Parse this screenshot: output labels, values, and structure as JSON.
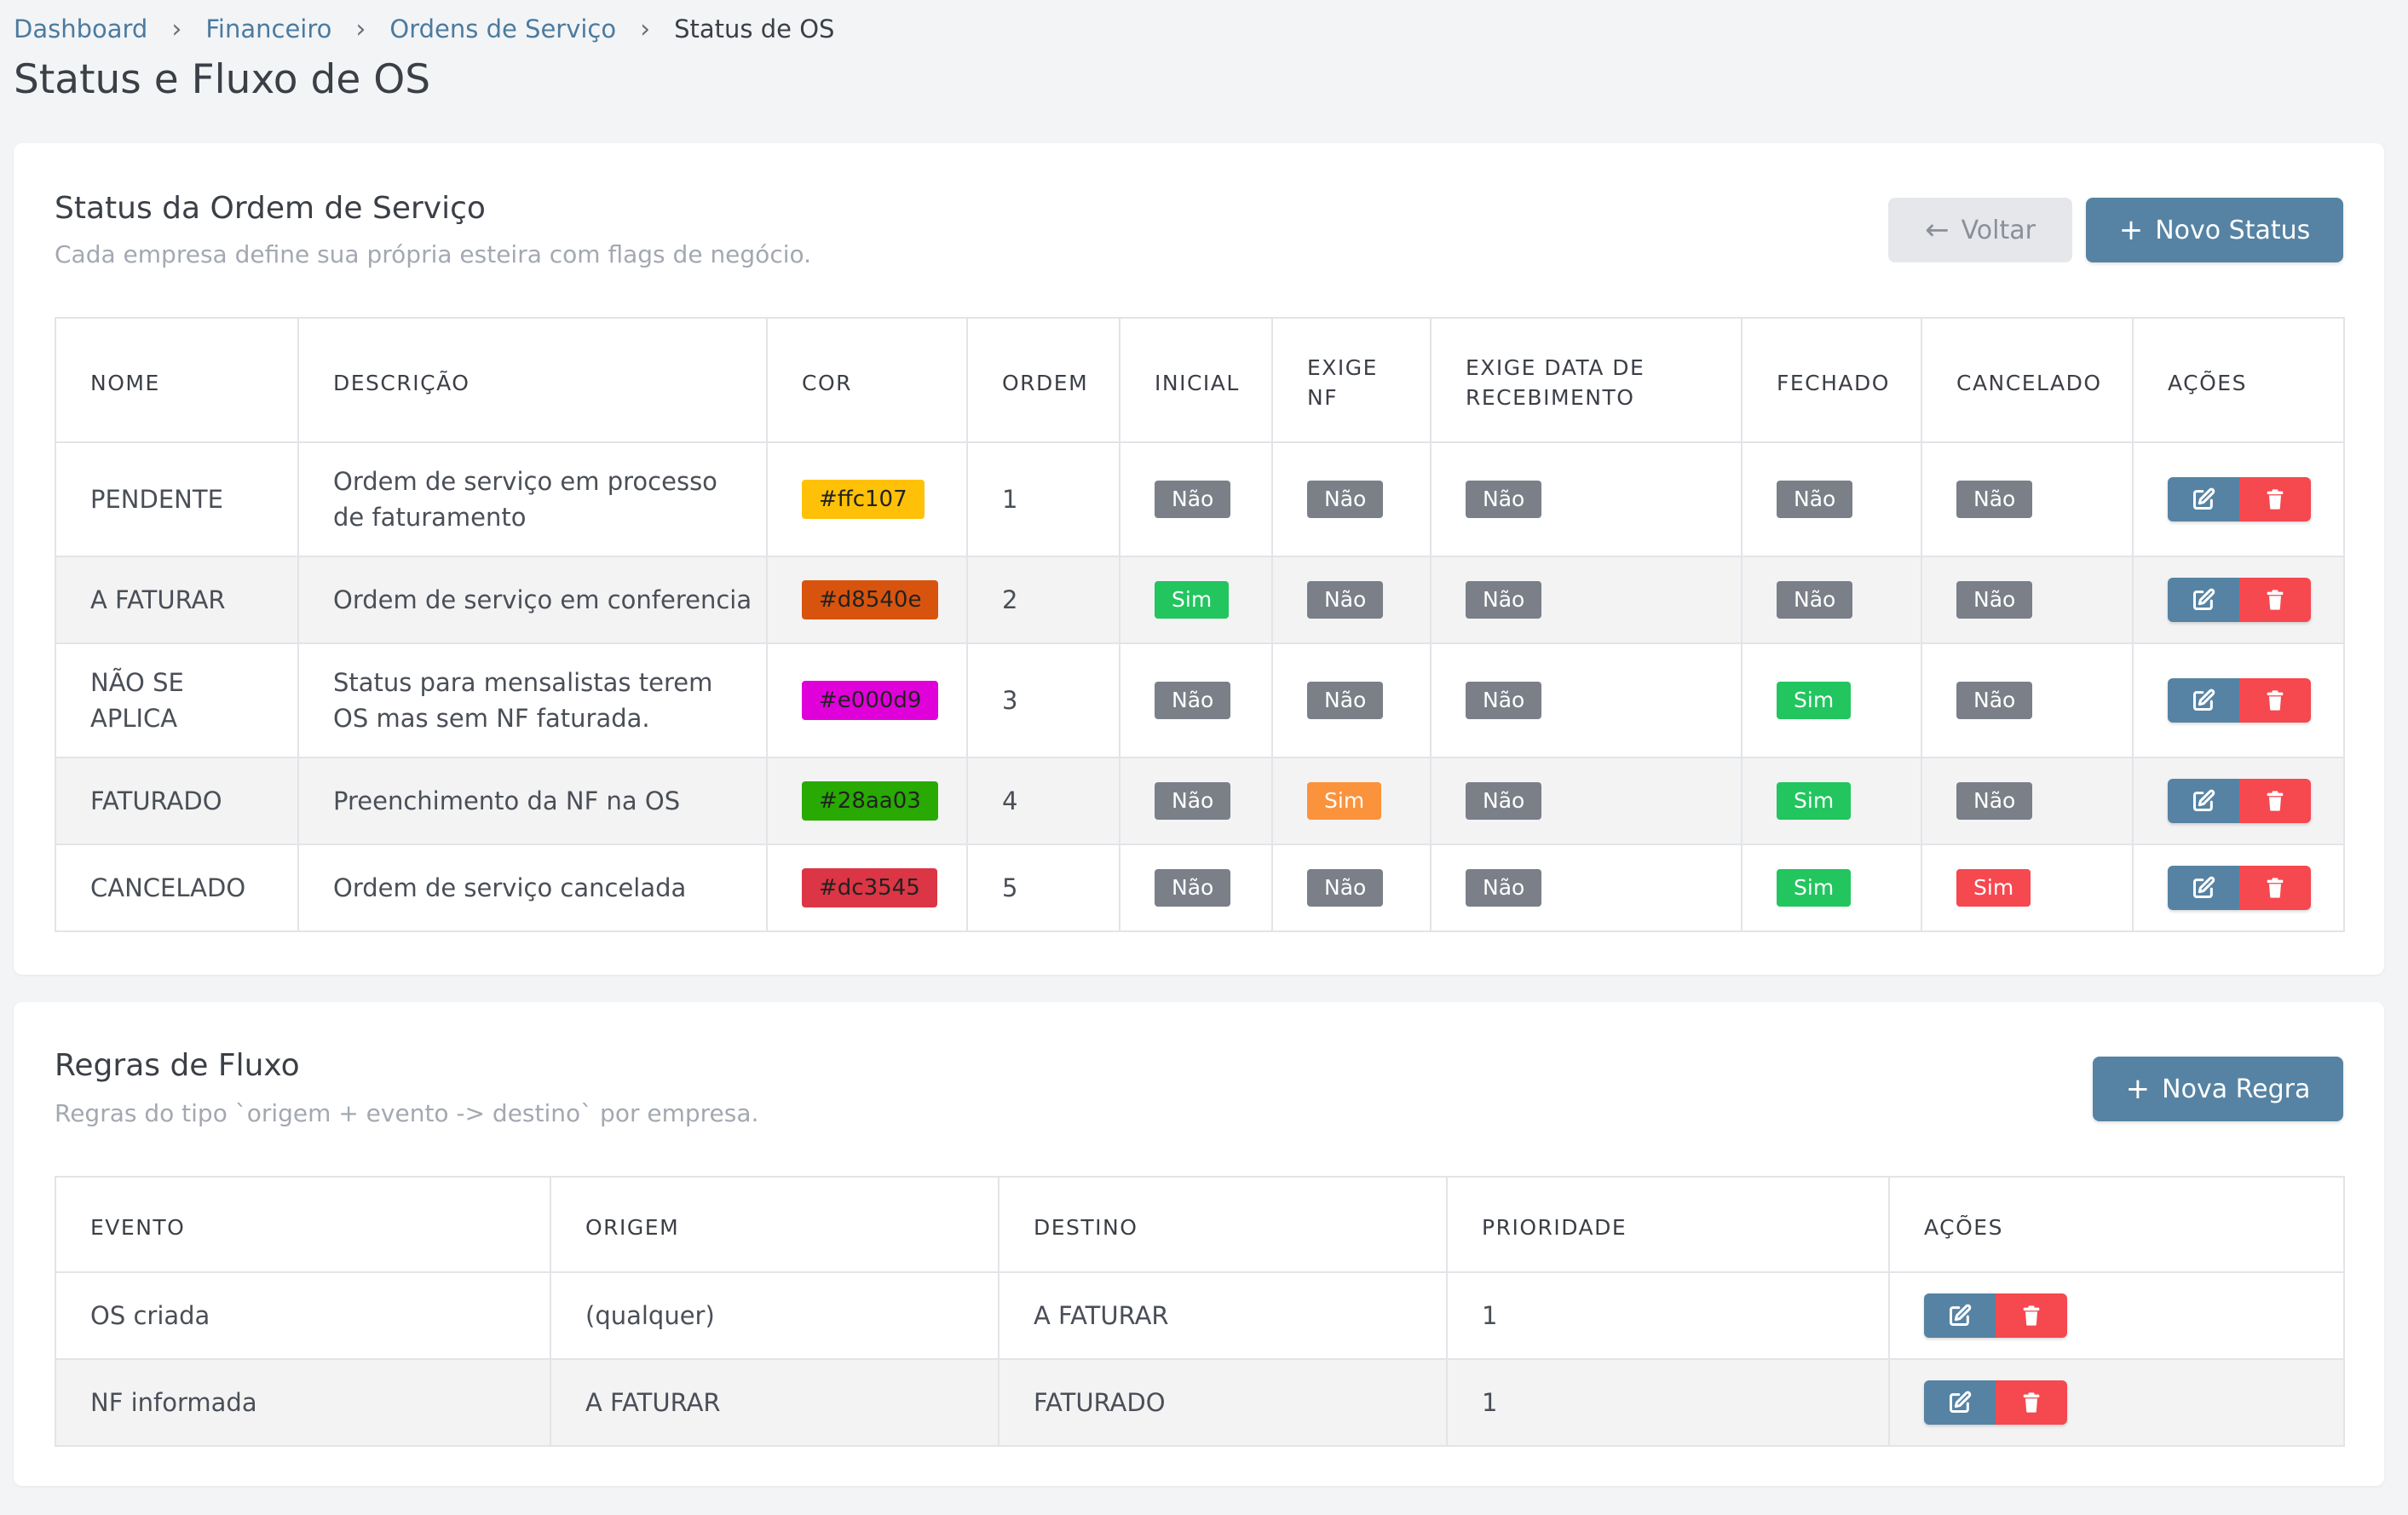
{
  "breadcrumb": {
    "items": [
      "Dashboard",
      "Financeiro",
      "Ordens de Serviço"
    ],
    "current": "Status de OS",
    "separator": "›"
  },
  "page_title": "Status e Fluxo de OS",
  "status_card": {
    "title": "Status da Ordem de Serviço",
    "subtitle": "Cada empresa define sua própria esteira com flags de negócio.",
    "back_label": "Voltar",
    "new_label": "Novo Status",
    "headers": {
      "nome": "NOME",
      "descricao": "DESCRIÇÃO",
      "cor": "COR",
      "ordem": "ORDEM",
      "inicial": "INICIAL",
      "exige_nf_1": "EXIGE",
      "exige_nf_2": "NF",
      "exige_data_1": "EXIGE DATA DE",
      "exige_data_2": "RECEBIMENTO",
      "fechado": "FECHADO",
      "cancelado": "CANCELADO",
      "acoes": "AÇÕES"
    },
    "rows": [
      {
        "nome_1": "PENDENTE",
        "nome_2": "",
        "desc_1": "Ordem de serviço em processo",
        "desc_2": "de faturamento",
        "cor": "#ffc107",
        "ordem": "1",
        "inicial": "Não",
        "exige_nf": "Não",
        "exige_data": "Não",
        "fechado": "Não",
        "cancelado": "Não"
      },
      {
        "nome_1": "A FATURAR",
        "nome_2": "",
        "desc_1": "Ordem de serviço em conferencia",
        "desc_2": "",
        "cor": "#d8540e",
        "ordem": "2",
        "inicial": "Sim",
        "exige_nf": "Não",
        "exige_data": "Não",
        "fechado": "Não",
        "cancelado": "Não"
      },
      {
        "nome_1": "NÃO SE",
        "nome_2": "APLICA",
        "desc_1": "Status para mensalistas terem",
        "desc_2": "OS mas sem NF faturada.",
        "cor": "#e000d9",
        "ordem": "3",
        "inicial": "Não",
        "exige_nf": "Não",
        "exige_data": "Não",
        "fechado": "Sim",
        "cancelado": "Não"
      },
      {
        "nome_1": "FATURADO",
        "nome_2": "",
        "desc_1": "Preenchimento da NF na OS",
        "desc_2": "",
        "cor": "#28aa03",
        "ordem": "4",
        "inicial": "Não",
        "exige_nf": "Sim",
        "exige_data": "Não",
        "fechado": "Sim",
        "cancelado": "Não"
      },
      {
        "nome_1": "CANCELADO",
        "nome_2": "",
        "desc_1": "Ordem de serviço cancelada",
        "desc_2": "",
        "cor": "#dc3545",
        "ordem": "5",
        "inicial": "Não",
        "exige_nf": "Não",
        "exige_data": "Não",
        "fechado": "Sim",
        "cancelado": "Sim"
      }
    ]
  },
  "rules_card": {
    "title": "Regras de Fluxo",
    "subtitle": "Regras do tipo `origem + evento -> destino` por empresa.",
    "new_label": "Nova Regra",
    "headers": {
      "evento": "EVENTO",
      "origem": "ORIGEM",
      "destino": "DESTINO",
      "prioridade": "PRIORIDADE",
      "acoes": "AÇÕES"
    },
    "rows": [
      {
        "evento": "OS criada",
        "origem": "(qualquer)",
        "destino": "A FATURAR",
        "prioridade": "1"
      },
      {
        "evento": "NF informada",
        "origem": "A FATURAR",
        "destino": "FATURADO",
        "prioridade": "1"
      }
    ]
  },
  "icons": {
    "back": "arrow-left-icon",
    "add": "plus-icon",
    "edit": "edit-icon",
    "delete": "trash-icon"
  },
  "colors": {
    "primary": "#5683a3",
    "danger": "#f5484f",
    "badge_no": "#7a7f88",
    "badge_yes": "#22c55e",
    "badge_warn": "#fb923c"
  }
}
